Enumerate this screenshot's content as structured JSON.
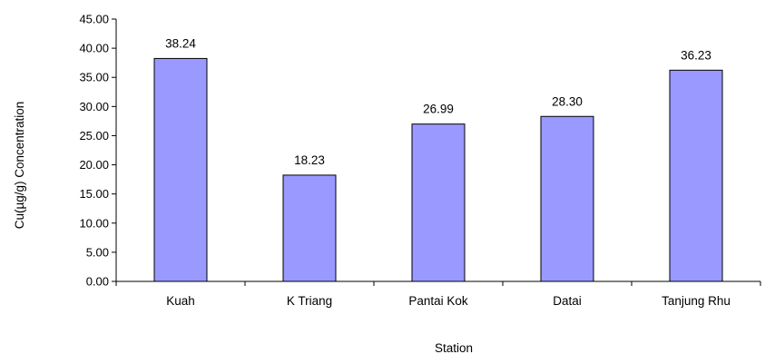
{
  "chart_data": {
    "type": "bar",
    "categories": [
      "Kuah",
      "K Triang",
      "Pantai Kok",
      "Datai",
      "Tanjung Rhu"
    ],
    "values": [
      38.24,
      18.23,
      26.99,
      28.3,
      36.23
    ],
    "data_labels": [
      "38.24",
      "18.23",
      "26.99",
      "28.30",
      "36.23"
    ],
    "yticks": [
      "0.00",
      "5.00",
      "10.00",
      "15.00",
      "20.00",
      "25.00",
      "30.00",
      "35.00",
      "40.00",
      "45.00"
    ],
    "ylim": [
      0,
      45
    ],
    "xlabel": "Station",
    "ylabel": "Cu(µg/g) Concentration",
    "legend": "none",
    "grid": false,
    "bar_color": "#9999ff"
  }
}
